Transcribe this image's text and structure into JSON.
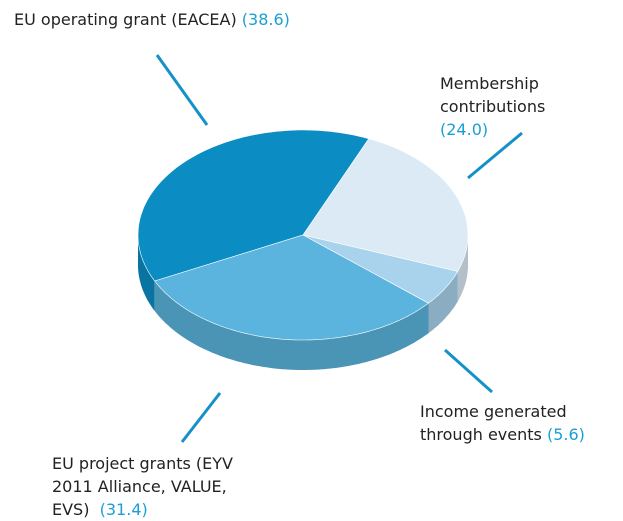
{
  "chart_data": {
    "type": "pie3d",
    "categories": [
      "EU operating grant (EACEA)",
      "Membership contributions",
      "Income generated through events",
      "EU project grants (EYV 2011 Alliance, VALUE, EVS)"
    ],
    "values": [
      38.6,
      24.0,
      5.6,
      31.4
    ],
    "value_labels": [
      "(38.6)",
      "(24.0)",
      "(5.6)",
      "(31.4)"
    ],
    "colors": [
      "#0b8dc4",
      "#dbeaf5",
      "#a9d3ec",
      "#5ab4de"
    ]
  }
}
